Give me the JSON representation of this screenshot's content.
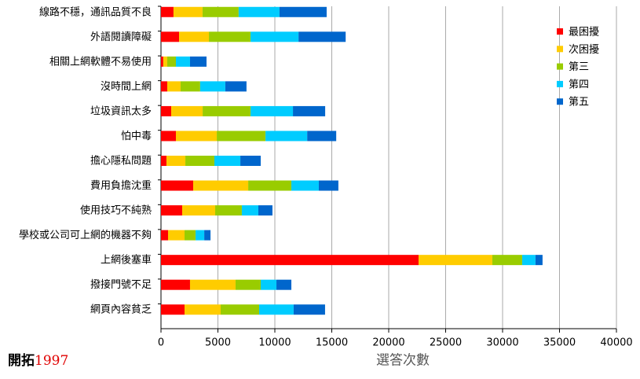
{
  "chart_data": {
    "type": "stacked-bar-horizontal",
    "xlabel": "選答次數",
    "categories": [
      "線路不穩，通訊品質不良",
      "外語閱讀障礙",
      "相關上網軟體不易使用",
      "沒時間上網",
      "垃圾資訊太多",
      "怕中毒",
      "擔心隱私問題",
      "費用負擔沈重",
      "使用技巧不純熟",
      "學校或公司可上網的機器不夠",
      "上網後塞車",
      "撥接門號不足",
      "網頁內容貧乏"
    ],
    "series": [
      {
        "name": "最困擾",
        "color": "#ff0000",
        "values": [
          1100,
          1590,
          200,
          550,
          900,
          1310,
          480,
          2830,
          1860,
          620,
          22620,
          2550,
          2070
        ]
      },
      {
        "name": "次困擾",
        "color": "#ffcc00",
        "values": [
          2550,
          2620,
          350,
          1170,
          2760,
          3590,
          1660,
          4830,
          2900,
          1450,
          6480,
          4000,
          3170
        ]
      },
      {
        "name": "第三",
        "color": "#99cc00",
        "values": [
          3170,
          3660,
          760,
          1720,
          4210,
          4280,
          2550,
          3790,
          2340,
          970,
          2620,
          2210,
          3380
        ]
      },
      {
        "name": "第四",
        "color": "#00ccff",
        "values": [
          3590,
          4210,
          1240,
          2210,
          3720,
          3660,
          2280,
          2410,
          1450,
          760,
          1170,
          1380,
          3030
        ]
      },
      {
        "name": "第五",
        "color": "#0066cc",
        "values": [
          4140,
          4140,
          1450,
          1860,
          2830,
          2550,
          1790,
          1720,
          1240,
          550,
          620,
          1310,
          2760
        ]
      }
    ],
    "xlim": [
      0,
      40000
    ],
    "xticks": [
      0,
      5000,
      10000,
      15000,
      20000,
      25000,
      30000,
      35000,
      40000
    ],
    "grid": true,
    "legend": "right"
  },
  "watermark": {
    "name": "開拓",
    "year": "1997"
  }
}
